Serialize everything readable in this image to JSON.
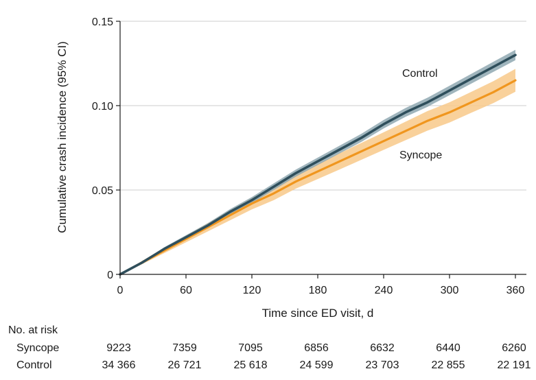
{
  "chart_data": {
    "type": "line",
    "title": "",
    "xlabel": "Time since ED visit, d",
    "ylabel": "Cumulative crash incidence (95% CI)",
    "xlim": [
      0,
      360
    ],
    "ylim": [
      0,
      0.15
    ],
    "x_ticks": [
      0,
      60,
      120,
      180,
      240,
      300,
      360
    ],
    "x_tick_labels": [
      "0",
      "60",
      "120",
      "180",
      "240",
      "300",
      "360"
    ],
    "y_ticks": [
      0,
      0.05,
      0.1,
      0.15
    ],
    "y_tick_labels": [
      "0",
      "0.05",
      "0.10",
      "0.15"
    ],
    "grid": "horizontal",
    "colors": {
      "control": "#2f4f5c",
      "control_ci": "#8fa8b2",
      "syncope": "#f0961e",
      "syncope_ci": "#f8c98a"
    },
    "series": [
      {
        "name": "Control",
        "x": [
          0,
          20,
          40,
          60,
          80,
          100,
          120,
          140,
          160,
          180,
          200,
          220,
          240,
          260,
          280,
          300,
          320,
          340,
          360
        ],
        "values": [
          0,
          0.007,
          0.015,
          0.022,
          0.029,
          0.037,
          0.044,
          0.052,
          0.06,
          0.067,
          0.074,
          0.081,
          0.089,
          0.096,
          0.102,
          0.109,
          0.116,
          0.123,
          0.13
        ],
        "ci_half_width": [
          0,
          0.0005,
          0.001,
          0.0012,
          0.0014,
          0.0016,
          0.0018,
          0.002,
          0.0021,
          0.0022,
          0.0023,
          0.0024,
          0.0025,
          0.0026,
          0.0027,
          0.0028,
          0.0029,
          0.003,
          0.0031
        ]
      },
      {
        "name": "Syncope",
        "x": [
          0,
          20,
          40,
          60,
          80,
          100,
          120,
          140,
          160,
          180,
          200,
          220,
          240,
          260,
          280,
          300,
          320,
          340,
          360
        ],
        "values": [
          0,
          0.007,
          0.014,
          0.021,
          0.028,
          0.035,
          0.042,
          0.048,
          0.055,
          0.061,
          0.067,
          0.073,
          0.079,
          0.085,
          0.091,
          0.096,
          0.102,
          0.108,
          0.115
        ],
        "ci_half_width": [
          0,
          0.001,
          0.0015,
          0.002,
          0.0025,
          0.003,
          0.0035,
          0.004,
          0.0042,
          0.0045,
          0.0048,
          0.005,
          0.0052,
          0.0055,
          0.0058,
          0.006,
          0.0062,
          0.0065,
          0.0068
        ]
      }
    ],
    "series_labels": {
      "control": "Control",
      "syncope": "Syncope"
    },
    "risk_table": {
      "header": "No. at risk",
      "times": [
        0,
        60,
        120,
        180,
        240,
        300,
        360
      ],
      "rows": [
        {
          "label": "Syncope",
          "values": [
            "9223",
            "7359",
            "7095",
            "6856",
            "6632",
            "6440",
            "6260"
          ]
        },
        {
          "label": "Control",
          "values": [
            "34 366",
            "26 721",
            "25 618",
            "24 599",
            "23 703",
            "22 855",
            "22 191"
          ]
        }
      ]
    }
  }
}
